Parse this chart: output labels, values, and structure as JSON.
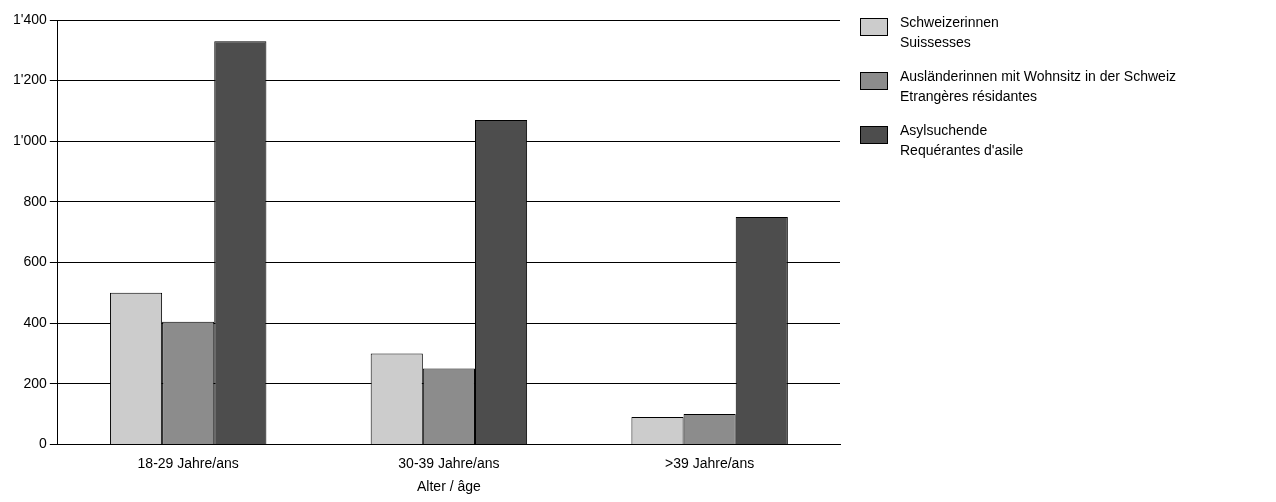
{
  "chart_data": {
    "type": "bar",
    "xlabel": "Alter / âge",
    "categories": [
      "18-29 Jahre/ans",
      "30-39 Jahre/ans",
      ">39 Jahre/ans"
    ],
    "series": [
      {
        "name": "Schweizerinnen\nSuissesses",
        "color": "#cccccc",
        "values": [
          500,
          300,
          90
        ]
      },
      {
        "name": "Ausländerinnen mit Wohnsitz in der Schweiz\nEtrangères résidantes",
        "color": "#8c8c8c",
        "values": [
          405,
          250,
          100
        ]
      },
      {
        "name": "Asylsuchende\nRequérantes d'asile",
        "color": "#4d4d4d",
        "values": [
          1330,
          1070,
          750
        ]
      }
    ],
    "ylim": [
      0,
      1400
    ],
    "yticks": [
      0,
      200,
      400,
      600,
      800,
      {
        "value": 1000,
        "label": "1'000"
      },
      {
        "value": 1200,
        "label": "1'200"
      },
      {
        "value": 1400,
        "label": "1'400"
      }
    ],
    "grid": "y",
    "legend": "right"
  }
}
